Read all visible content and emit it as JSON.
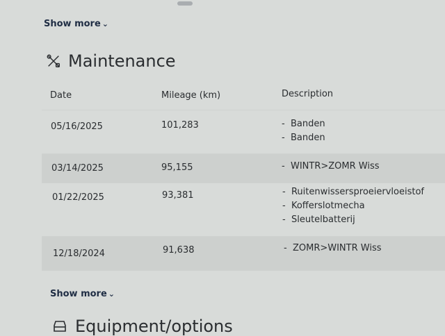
{
  "show_more_top": "Show more",
  "section": {
    "title": "Maintenance",
    "icon": "wrench-screwdriver-icon"
  },
  "columns": [
    "Date",
    "Mileage (km)",
    "Description"
  ],
  "rows": [
    {
      "date": "05/16/2025",
      "mileage": "101,283",
      "items": [
        "Banden",
        "Banden"
      ]
    },
    {
      "date": "03/14/2025",
      "mileage": "95,155",
      "items": [
        "WINTR>ZOMR Wiss"
      ]
    },
    {
      "date": "01/22/2025",
      "mileage": "93,381",
      "items": [
        "Ruitenwissersproeiervloeistof",
        "Kofferslotmecha",
        "Sleutelbatterij"
      ]
    },
    {
      "date": "12/18/2024",
      "mileage": "91,638",
      "items": [
        "ZOMR>WINTR Wiss"
      ]
    }
  ],
  "show_more_bottom": "Show more",
  "next_section": {
    "title": "Equipment/options",
    "icon": "car-icon"
  }
}
